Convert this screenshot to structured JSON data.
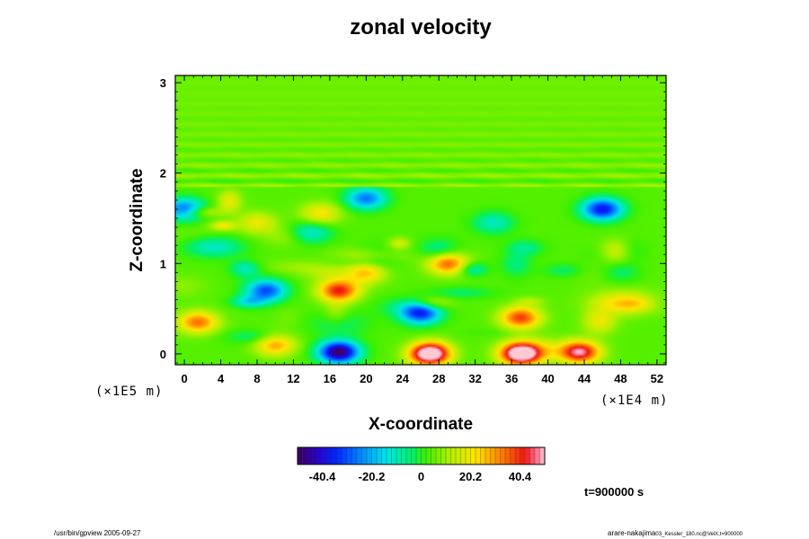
{
  "chart_data": {
    "type": "heatmap",
    "title": "zonal velocity",
    "xlabel": "X-coordinate",
    "ylabel": "Z-coordinate",
    "x_scale_label": "(×1E4 m)",
    "y_scale_label": "(×1E5 m)",
    "xlim": [
      -1,
      53
    ],
    "ylim": [
      -0.12,
      3.08
    ],
    "x_ticks": [
      "0",
      "4",
      "8",
      "12",
      "16",
      "20",
      "24",
      "28",
      "32",
      "36",
      "40",
      "44",
      "48",
      "52"
    ],
    "x_tick_values": [
      0,
      4,
      8,
      12,
      16,
      20,
      24,
      28,
      32,
      36,
      40,
      44,
      48,
      52
    ],
    "y_ticks": [
      "0",
      "1",
      "2",
      "3"
    ],
    "y_tick_values": [
      0,
      1,
      2,
      3
    ],
    "colorbar": {
      "ticks": [
        "-40.4",
        "-20.2",
        "0",
        "20.2",
        "40.4"
      ],
      "tick_values": [
        -40.4,
        -20.2,
        0,
        20.2,
        40.4
      ],
      "range": [
        -50.5,
        50.5
      ]
    },
    "features": [
      {
        "x": 27,
        "z": 0.0,
        "value": 60
      },
      {
        "x": 37,
        "z": 0.0,
        "value": 55
      },
      {
        "x": 17,
        "z": 0.02,
        "value": -55
      },
      {
        "x": 43.5,
        "z": 0.02,
        "value": 45
      },
      {
        "x": 10,
        "z": 0.1,
        "value": 25
      },
      {
        "x": 1.5,
        "z": 0.35,
        "value": 30
      },
      {
        "x": 17,
        "z": 0.7,
        "value": 38
      },
      {
        "x": 37,
        "z": 0.4,
        "value": 35
      },
      {
        "x": 26,
        "z": 0.45,
        "value": -38
      },
      {
        "x": 9,
        "z": 0.7,
        "value": -35
      },
      {
        "x": 29,
        "z": 1.0,
        "value": 32
      },
      {
        "x": 20,
        "z": 0.9,
        "value": 22
      },
      {
        "x": 48,
        "z": 0.9,
        "value": -12
      },
      {
        "x": 46,
        "z": 1.6,
        "value": -42
      },
      {
        "x": 0,
        "z": 1.6,
        "value": -32
      },
      {
        "x": 20,
        "z": 1.72,
        "value": -30
      },
      {
        "x": 8,
        "z": 1.45,
        "value": 15
      },
      {
        "x": 34,
        "z": 1.45,
        "value": -15
      },
      {
        "x": 28,
        "z": 1.15,
        "value": -12
      },
      {
        "x": 15,
        "z": 1.55,
        "value": 18
      }
    ]
  },
  "footer": {
    "time_label": "t=900000 s",
    "left_text": "/usr/bin/gpview 2005-09-27",
    "right_text_main": "arare-nakajima",
    "right_text_sub": "03_Kessler_180.nc@VelX,t=900000"
  }
}
